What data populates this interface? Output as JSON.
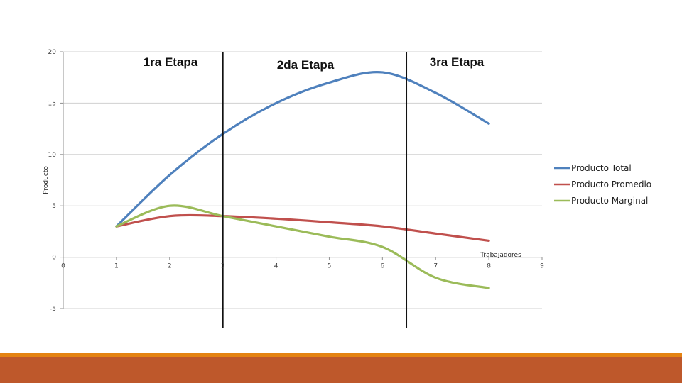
{
  "chart_data": {
    "type": "line",
    "xlabel": "Trabajadores",
    "ylabel": "Producto",
    "xlim": [
      0,
      9
    ],
    "ylim": [
      -5,
      20
    ],
    "x_ticks": [
      "0",
      "1",
      "2",
      "3",
      "4",
      "5",
      "6",
      "7",
      "8",
      "9"
    ],
    "y_ticks": [
      "-5",
      "0",
      "5",
      "10",
      "15",
      "20"
    ],
    "grid": "horizontal",
    "legend_position": "right",
    "x": [
      1,
      2,
      3,
      4,
      5,
      6,
      7,
      8
    ],
    "series": [
      {
        "name": "Producto Total",
        "color": "#4f81bd",
        "values": [
          3,
          8,
          12,
          15,
          17,
          18,
          16,
          13
        ]
      },
      {
        "name": "Producto Promedio",
        "color": "#c0504d",
        "values": [
          3,
          4,
          4,
          3.75,
          3.4,
          3,
          2.3,
          1.6
        ]
      },
      {
        "name": "Producto Marginal",
        "color": "#9bbb59",
        "values": [
          3,
          5,
          4,
          3,
          2,
          1,
          -2,
          -3
        ]
      }
    ],
    "stage_dividers": [
      3,
      6.45
    ],
    "annotations": [
      "1ra Etapa",
      "2da Etapa",
      "3ra Etapa"
    ]
  },
  "footer": {
    "bar_color": "#be582b",
    "stripe_color": "#e48312"
  }
}
